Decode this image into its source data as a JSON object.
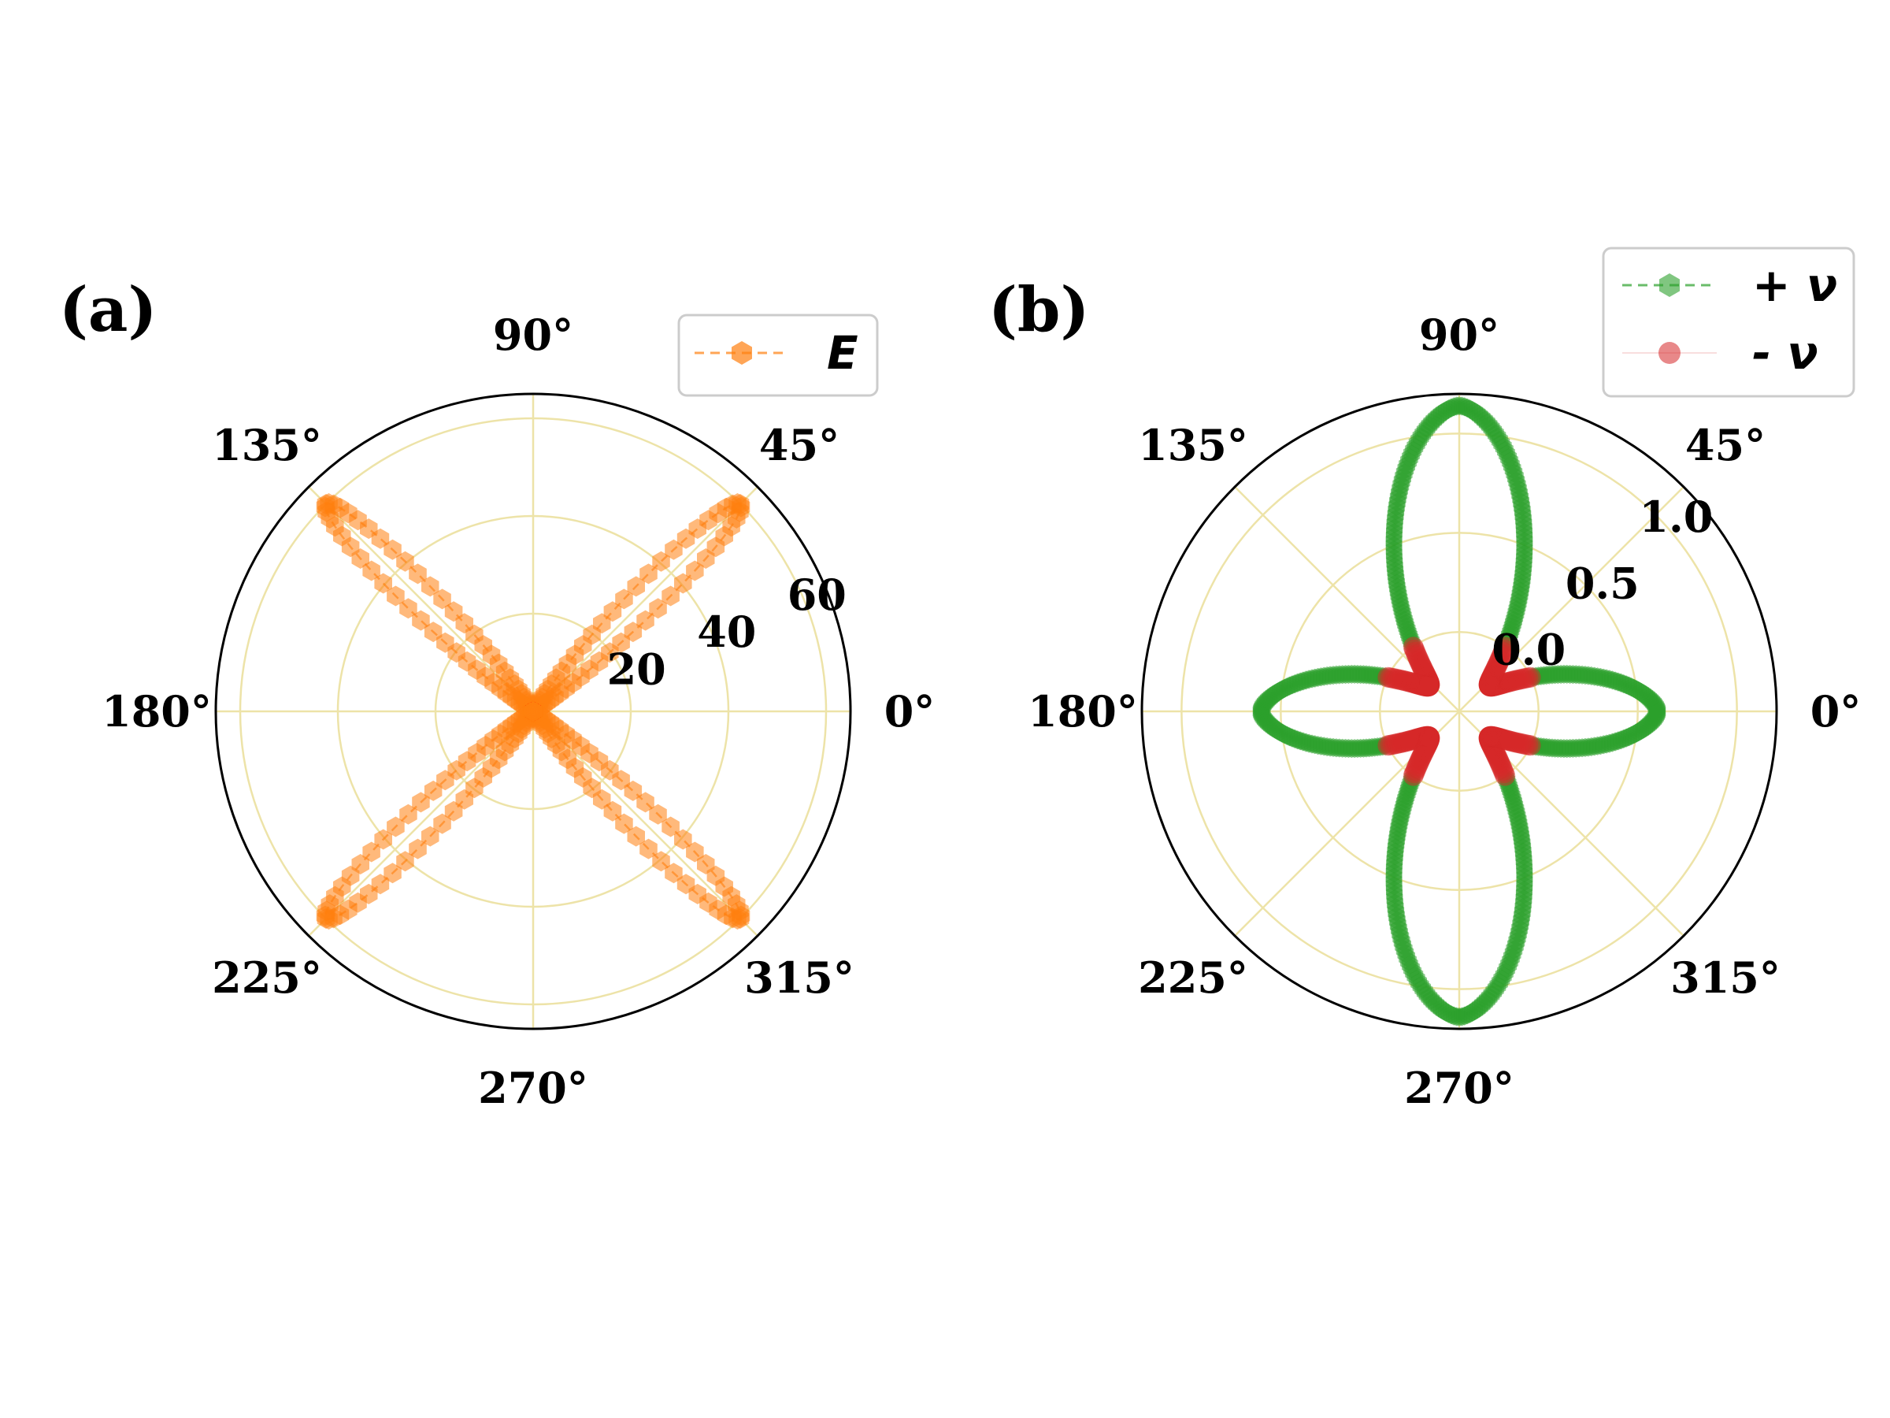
{
  "chart_data": [
    {
      "type": "polar-scatter",
      "panel_label": "(a)",
      "theta_ticks": [
        "0°",
        "45°",
        "90°",
        "135°",
        "180°",
        "225°",
        "270°",
        "315°"
      ],
      "r_ticks": [
        "20",
        "40",
        "60"
      ],
      "r_tick_values": [
        20,
        40,
        60
      ],
      "rlim": [
        0,
        65
      ],
      "grid": true,
      "legend_position": "top-right",
      "series": [
        {
          "name": "E",
          "color": "#ff7f0e",
          "marker": "hexagon",
          "linestyle": "dashed",
          "description_of_points": "four narrow lobes along 45°,135°,225°,315°",
          "lobe_max_r": 60,
          "lobe_angles_deg": [
            45,
            135,
            225,
            315
          ]
        }
      ]
    },
    {
      "type": "polar-scatter",
      "panel_label": "(b)",
      "theta_ticks": [
        "0°",
        "45°",
        "90°",
        "135°",
        "180°",
        "225°",
        "270°",
        "315°"
      ],
      "r_ticks": [
        "0.0",
        "0.5",
        "1.0"
      ],
      "r_tick_values": [
        0.0,
        0.5,
        1.0
      ],
      "rlim": [
        -0.4,
        1.2
      ],
      "grid": true,
      "legend_position": "top-right",
      "series": [
        {
          "name": "+ ν",
          "color": "#2ca02c",
          "marker": "hexagon",
          "linestyle": "dashed",
          "max_value_90deg": 1.14,
          "value_0deg": 0.6
        },
        {
          "name": "- ν",
          "color": "#d62728",
          "marker": "circle",
          "linestyle": "solid",
          "lobe_angles_deg": [
            45,
            135,
            225,
            315
          ],
          "lobe_min_value": -0.05
        }
      ]
    }
  ]
}
